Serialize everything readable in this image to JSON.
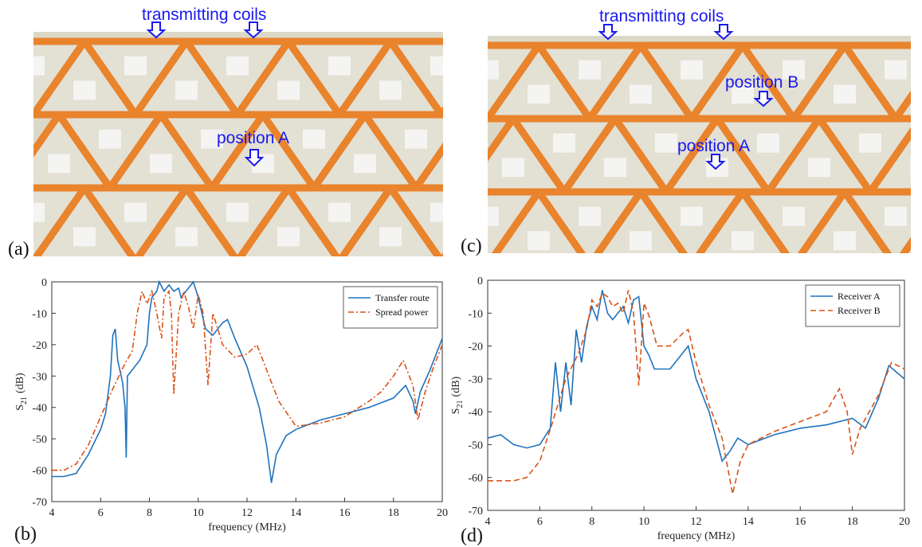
{
  "photos": [
    {
      "panel_label": "(a)",
      "labels": [
        "transmitting coils",
        "position A"
      ]
    },
    {
      "panel_label": "(c)",
      "labels": [
        "transmitting coils",
        "position B",
        "position A"
      ]
    }
  ],
  "chart_data": [
    {
      "type": "line",
      "panel_label": "(b)",
      "xlabel": "frequency (MHz)",
      "ylabel": {
        "symbol": "S",
        "subscript": "21",
        "unit": "(dB)"
      },
      "xlim": [
        4,
        20
      ],
      "xticks": [
        4,
        6,
        8,
        10,
        12,
        14,
        16,
        18,
        20
      ],
      "ylim": [
        -70,
        0
      ],
      "yticks": [
        -70,
        -60,
        -50,
        -40,
        -30,
        -20,
        -10,
        0
      ],
      "legend": "upper right",
      "series": [
        {
          "name": "Transfer route",
          "color": "#1f72bd",
          "dash": "solid",
          "x": [
            4,
            4.5,
            5,
            5.5,
            6,
            6.2,
            6.4,
            6.5,
            6.6,
            6.7,
            6.9,
            7.0,
            7.05,
            7.1,
            7.3,
            7.6,
            7.9,
            8.0,
            8.1,
            8.3,
            8.4,
            8.6,
            8.8,
            9.0,
            9.2,
            9.3,
            9.5,
            9.7,
            9.8,
            10.0,
            10.3,
            10.6,
            11.0,
            11.2,
            11.5,
            12.0,
            12.5,
            12.8,
            13.0,
            13.2,
            13.6,
            14,
            15,
            16,
            17,
            18,
            18.5,
            18.8,
            18.9,
            19.1,
            19.5,
            20
          ],
          "values": [
            -62,
            -62,
            -61,
            -55,
            -47,
            -42,
            -30,
            -17,
            -15,
            -25,
            -32,
            -40,
            -56,
            -30,
            -28,
            -25,
            -20,
            -10,
            -5,
            -3,
            0,
            -3,
            -1,
            -3,
            -2,
            -5,
            -3,
            -1,
            0,
            -5,
            -15,
            -17,
            -13,
            -12,
            -18,
            -27,
            -40,
            -52,
            -64,
            -55,
            -49,
            -47,
            -44,
            -42,
            -40,
            -37,
            -33,
            -38,
            -42,
            -35,
            -28,
            -18
          ]
        },
        {
          "name": "Spread power",
          "color": "#d95319",
          "dash": "dashdot",
          "x": [
            4,
            4.5,
            5,
            5.5,
            6,
            6.5,
            7,
            7.3,
            7.5,
            7.7,
            7.9,
            8.1,
            8.3,
            8.5,
            8.6,
            8.8,
            8.9,
            9.0,
            9.2,
            9.4,
            9.6,
            9.8,
            10.0,
            10.2,
            10.4,
            10.6,
            10.8,
            11.0,
            11.5,
            12.0,
            12.4,
            12.8,
            13.3,
            14,
            15,
            16,
            17,
            17.5,
            18,
            18.4,
            18.8,
            19.0,
            19.3,
            19.6,
            20
          ],
          "values": [
            -60,
            -60,
            -58,
            -52,
            -43,
            -34,
            -26,
            -22,
            -10,
            -3,
            -7,
            -3,
            -10,
            -18,
            -5,
            -3,
            -10,
            -36,
            -10,
            -3,
            -8,
            -15,
            -4,
            -10,
            -33,
            -10,
            -15,
            -20,
            -24,
            -23,
            -20,
            -28,
            -38,
            -46,
            -45,
            -43,
            -38,
            -35,
            -30,
            -25,
            -33,
            -44,
            -35,
            -28,
            -20
          ]
        }
      ]
    },
    {
      "type": "line",
      "panel_label": "(d)",
      "xlabel": "frequency (MHz)",
      "ylabel": {
        "symbol": "S",
        "subscript": "21",
        "unit": "(dB)"
      },
      "xlim": [
        4,
        20
      ],
      "xticks": [
        4,
        6,
        8,
        10,
        12,
        14,
        16,
        18,
        20
      ],
      "ylim": [
        -70,
        0
      ],
      "yticks": [
        -70,
        -60,
        -50,
        -40,
        -30,
        -20,
        -10,
        0
      ],
      "legend": "upper right",
      "series": [
        {
          "name": "Receiver A",
          "color": "#1f72bd",
          "dash": "solid",
          "x": [
            4,
            4.5,
            5,
            5.5,
            6,
            6.4,
            6.6,
            6.8,
            7.0,
            7.2,
            7.4,
            7.6,
            7.8,
            8.0,
            8.2,
            8.4,
            8.6,
            8.8,
            9.0,
            9.2,
            9.4,
            9.6,
            9.8,
            10.0,
            10.2,
            10.4,
            11.0,
            11.5,
            11.7,
            12.0,
            12.5,
            13.0,
            13.3,
            13.6,
            14,
            15,
            16,
            17,
            18,
            18.5,
            19.0,
            19.4,
            19.7,
            20
          ],
          "values": [
            -48,
            -47,
            -50,
            -51,
            -50,
            -45,
            -25,
            -40,
            -25,
            -38,
            -15,
            -25,
            -14,
            -8,
            -12,
            -3,
            -10,
            -12,
            -10,
            -8,
            -13,
            -6,
            -5,
            -20,
            -23,
            -27,
            -27,
            -22,
            -20,
            -30,
            -40,
            -55,
            -52,
            -48,
            -50,
            -47,
            -45,
            -44,
            -42,
            -45,
            -36,
            -26,
            -28,
            -30
          ]
        },
        {
          "name": "Receiver B",
          "color": "#d95319",
          "dash": "dashed",
          "x": [
            4,
            5,
            5.5,
            6,
            6.5,
            6.8,
            7.0,
            7.5,
            7.8,
            8.0,
            8.2,
            8.4,
            8.6,
            8.8,
            9.0,
            9.2,
            9.4,
            9.6,
            9.8,
            10.0,
            10.2,
            10.5,
            11.0,
            11.5,
            11.7,
            12.0,
            12.5,
            13.0,
            13.4,
            13.7,
            14,
            15,
            16,
            17,
            17.5,
            17.8,
            18.0,
            18.3,
            19.0,
            19.5,
            20
          ],
          "values": [
            -61,
            -61,
            -60,
            -55,
            -43,
            -35,
            -30,
            -22,
            -15,
            -6,
            -8,
            -4,
            -5,
            -8,
            -7,
            -10,
            -3,
            -10,
            -32,
            -7,
            -11,
            -20,
            -20,
            -16,
            -15,
            -25,
            -38,
            -48,
            -65,
            -55,
            -50,
            -46,
            -43,
            -40,
            -33,
            -40,
            -53,
            -45,
            -35,
            -25,
            -27
          ]
        }
      ]
    }
  ]
}
